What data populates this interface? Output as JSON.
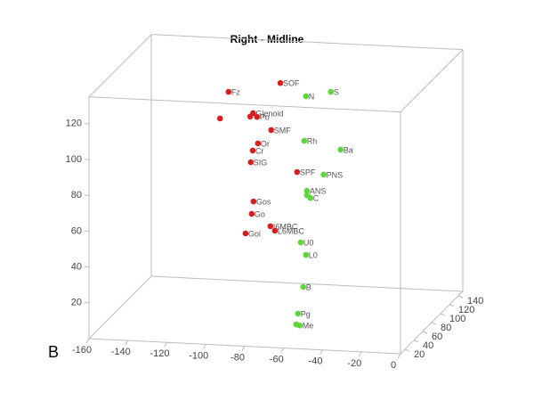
{
  "chart_data": {
    "type": "scatter3d",
    "title": "Right - Midline",
    "annotation": "B",
    "xlim": [
      -160,
      0
    ],
    "ylim": [
      10,
      150
    ],
    "zlim": [
      0,
      135
    ],
    "xticks": [
      -160,
      -140,
      -120,
      -100,
      -80,
      -60,
      -40,
      -20,
      0
    ],
    "yticks": [
      20,
      40,
      60,
      80,
      100,
      120,
      140
    ],
    "zticks": [
      20,
      40,
      60,
      80,
      100,
      120
    ],
    "series": [
      {
        "color": "#d62020",
        "labels": [
          "Fz",
          "SOF",
          null,
          "Glenoid",
          null,
          "Po",
          "SMF",
          "Or",
          "Cr",
          "SIG",
          "SPF",
          "Gos",
          "Go",
          "I6MBC",
          "L6MBC",
          "Goi"
        ],
        "x": [
          -106.6,
          -80,
          -111,
          -94,
          -95.5,
          -92,
          -84.7,
          -91.5,
          -94.2,
          -95.2,
          -71.4,
          -93.8,
          -94.7,
          -85.1,
          -82.8,
          -97.9
        ],
        "y": [
          90,
          90,
          90,
          90,
          90,
          90,
          90,
          90,
          90,
          90,
          90,
          90,
          90,
          90,
          90,
          90
        ],
        "z": [
          120.7,
          127,
          105.6,
          109.5,
          107.5,
          107.5,
          100.5,
          92.7,
          88.6,
          82,
          77.8,
          60.2,
          53.2,
          46.8,
          44.4,
          42.1
        ]
      },
      {
        "color": "#5fd63a",
        "labels": [
          "S",
          "N",
          "Rh",
          "Ba",
          "PNS",
          "ANS",
          null,
          "C",
          "U0",
          "L0",
          "B",
          "Pg",
          "Me",
          null
        ],
        "x": [
          -47.2,
          -60,
          -60.9,
          -42.2,
          -50.9,
          -59.5,
          -59.5,
          -57.7,
          -62.7,
          -60,
          -61.4,
          -64.1,
          -63.2,
          -65
        ],
        "y": [
          60,
          60,
          60,
          60,
          60,
          60,
          60,
          60,
          60,
          60,
          60,
          60,
          60,
          60
        ],
        "z": [
          131.3,
          128.2,
          103.2,
          99.3,
          84.9,
          75.4,
          72.9,
          71.5,
          46.4,
          39.6,
          21.6,
          6.6,
          0,
          0.5
        ]
      }
    ]
  }
}
